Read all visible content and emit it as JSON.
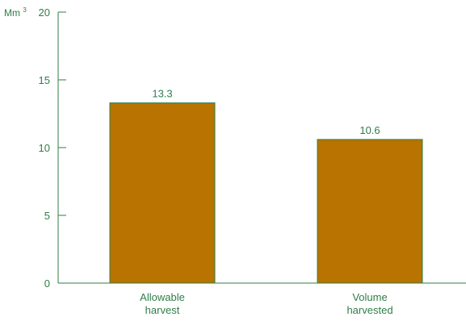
{
  "chart_data": {
    "type": "bar",
    "title": "",
    "xlabel": "",
    "ylabel": "",
    "y_unit": "Mm",
    "y_unit_superscript": "3",
    "ylim": [
      0,
      20
    ],
    "yticks": [
      0,
      5,
      10,
      15,
      20
    ],
    "categories": [
      [
        "Allowable",
        "harvest"
      ],
      [
        "Volume",
        "harvested"
      ]
    ],
    "values": [
      13.3,
      10.6
    ],
    "data_labels": [
      "13.3",
      "10.6"
    ],
    "grid": false,
    "legend": "none",
    "colors": {
      "bar_fill": "#b87301",
      "bar_stroke": "#2f7d48",
      "axis": "#2f7d48",
      "text": "#2f7d48"
    }
  }
}
